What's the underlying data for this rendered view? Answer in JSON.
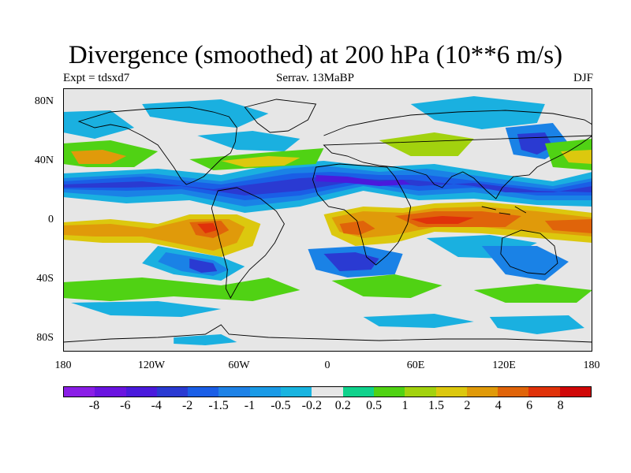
{
  "title": "Divergence (smoothed) at 200 hPa (10**6 m/s)",
  "subtitle_left": "Expt = tdsxd7",
  "subtitle_center": "Serrav.  13MaBP",
  "subtitle_right": "DJF",
  "y_ticks": [
    "80N",
    "40N",
    "0",
    "40S",
    "80S"
  ],
  "x_ticks": [
    "180",
    "120W",
    "60W",
    "0",
    "60E",
    "120E",
    "180"
  ],
  "colorbar": {
    "labels": [
      "-8",
      "-6",
      "-4",
      "-2",
      "-1.5",
      "-1",
      "-0.5",
      "-0.2",
      "0.2",
      "0.5",
      "1",
      "1.5",
      "2",
      "4",
      "6",
      "8"
    ],
    "colors": [
      "#8a1ee6",
      "#6a14e0",
      "#4a1adc",
      "#2a3ad2",
      "#1a5ee6",
      "#1e82e6",
      "#1a9ae6",
      "#19b4e0",
      "#e6e6e6",
      "#10d28c",
      "#50d214",
      "#a2d20e",
      "#dcc80e",
      "#e09a0a",
      "#e0640a",
      "#e0320a",
      "#d00808"
    ]
  },
  "map_data": {
    "projection": "cylindrical-equidistant",
    "lon_range": [
      -180,
      180
    ],
    "lat_range": [
      -90,
      90
    ],
    "variable": "200 hPa divergence",
    "features": [
      "coastlines",
      "filled contours"
    ]
  }
}
